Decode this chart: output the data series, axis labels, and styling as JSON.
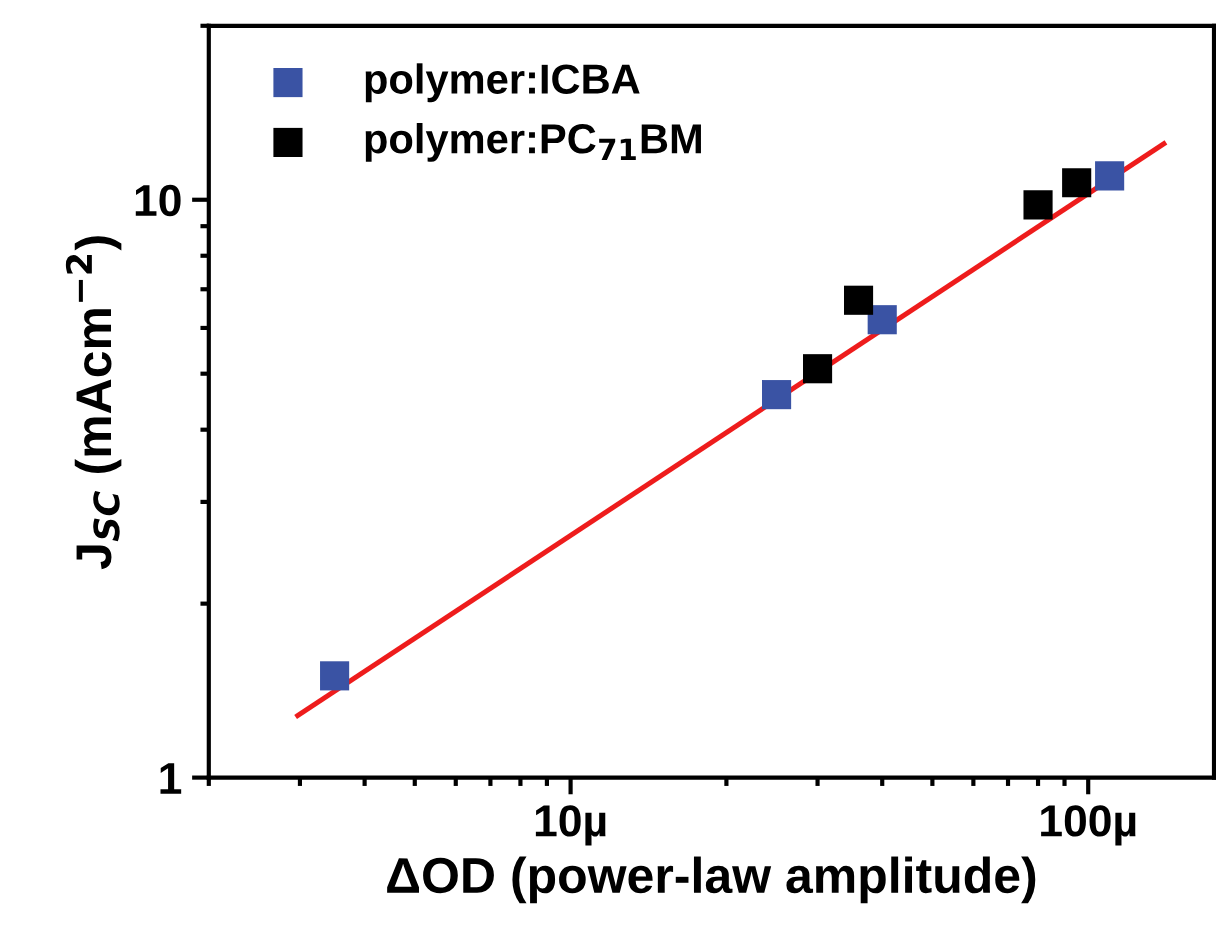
{
  "chart_data": {
    "type": "scatter",
    "xlabel": "ΔOD (power-law amplitude)",
    "ylabel": "J$_{SC}$ (mAcm$^{−2}$)",
    "log": "xy",
    "xlim": [
      2,
      175
    ],
    "ylim": [
      1,
      20
    ],
    "xticks": [
      {
        "value": 10,
        "label": "10µ"
      },
      {
        "value": 100,
        "label": "100µ"
      }
    ],
    "yticks": [
      1,
      10
    ],
    "marker": "square",
    "legend": "top left",
    "grid": false,
    "series": [
      {
        "name": "polymer:ICBA",
        "color": "#3a53a4",
        "x": [
          3.5,
          25,
          40,
          110
        ],
        "values": [
          1.5,
          4.6,
          6.2,
          11.0
        ]
      },
      {
        "name": "polymer:PC$_{71}$BM",
        "color": "#000000",
        "x": [
          30,
          36,
          80,
          95
        ],
        "values": [
          5.1,
          6.7,
          9.8,
          10.7
        ]
      },
      {
        "type": "line",
        "color": "#ee1c1c",
        "marker": "none",
        "x": [
          2.97,
          140
        ],
        "values": [
          1.28,
          12.5
        ]
      }
    ]
  }
}
